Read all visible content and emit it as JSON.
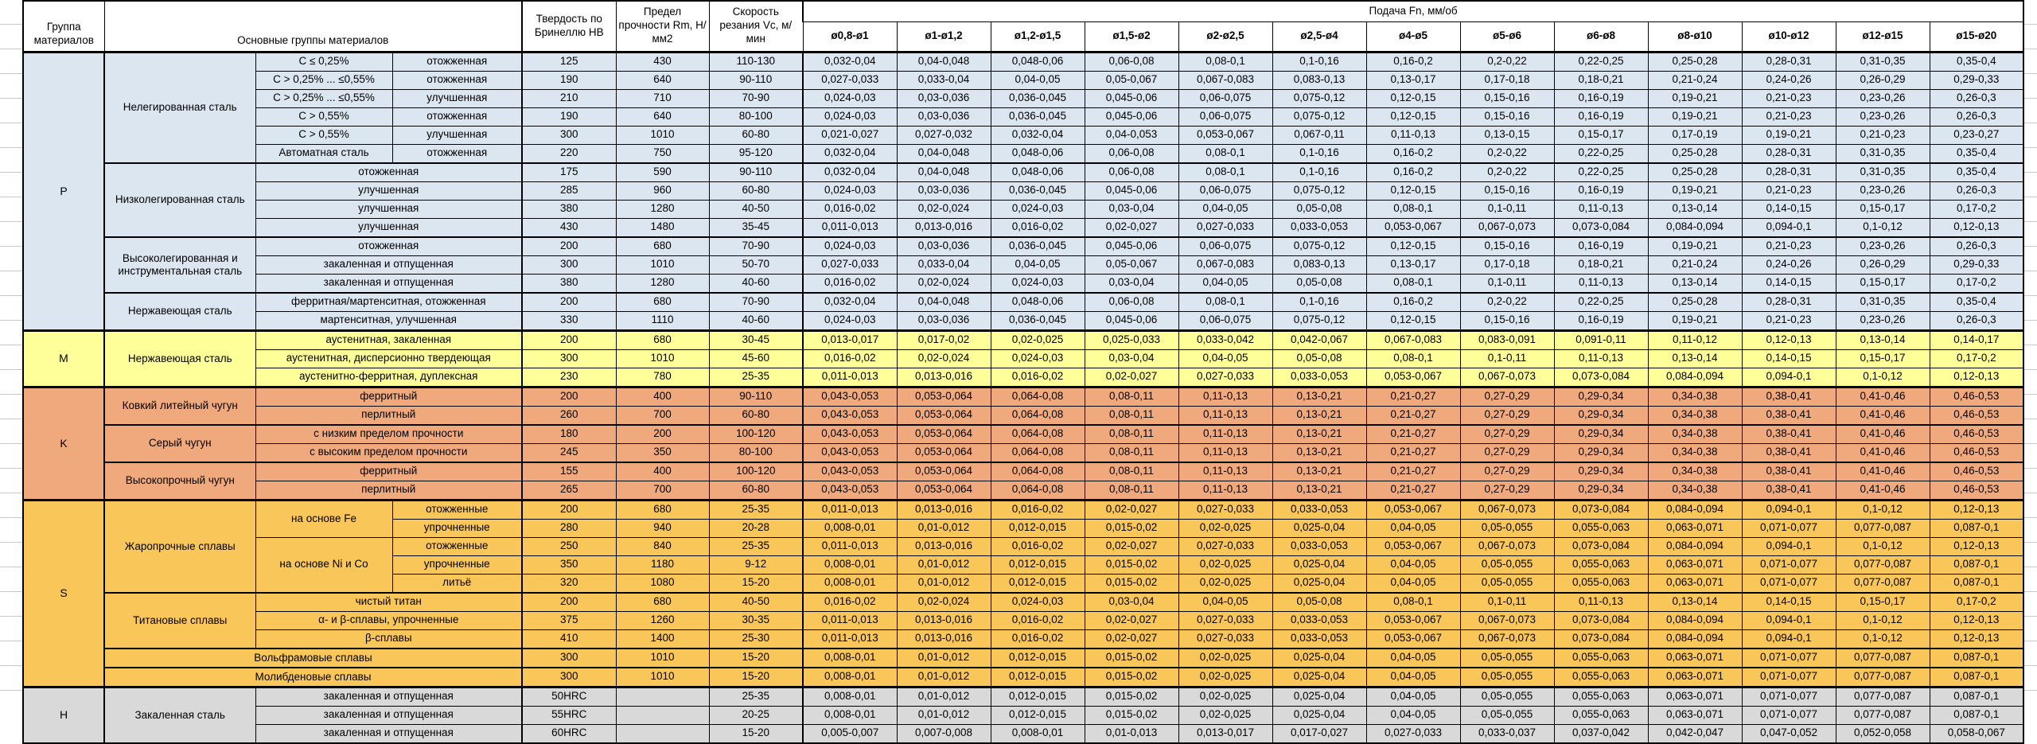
{
  "header": {
    "col_group": "Группа материалов",
    "col_materials": "Основные группы материалов",
    "col_hardness": "Твердость по Бринеллю HB",
    "col_strength": "Предел прочности Rm, Н/мм2",
    "col_speed": "Скорость резания Vc, м/мин",
    "feed_group": "Подача Fn, мм/об",
    "feed_columns": [
      "ø0,8-ø1",
      "ø1-ø1,2",
      "ø1,2-ø1,5",
      "ø1,5-ø2",
      "ø2-ø2,5",
      "ø2,5-ø4",
      "ø4-ø5",
      "ø5-ø6",
      "ø6-ø8",
      "ø8-ø10",
      "ø10-ø12",
      "ø12-ø15",
      "ø15-ø20"
    ]
  },
  "colors": {
    "p_blue": "#DCE6F1",
    "m_yellow": "#FFFF99",
    "k_salmon": "#F0A97C",
    "s_amber": "#F9C65A",
    "h_gray": "#D9D9D9",
    "border": "#000000",
    "gridline": "#C9C9C9"
  },
  "feed_presets": {
    "A": [
      "0,032-0,04",
      "0,04-0,048",
      "0,048-0,06",
      "0,06-0,08",
      "0,08-0,1",
      "0,1-0,16",
      "0,16-0,2",
      "0,2-0,22",
      "0,22-0,25",
      "0,25-0,28",
      "0,28-0,31",
      "0,31-0,35",
      "0,35-0,4"
    ],
    "B": [
      "0,027-0,033",
      "0,033-0,04",
      "0,04-0,05",
      "0,05-0,067",
      "0,067-0,083",
      "0,083-0,13",
      "0,13-0,17",
      "0,17-0,18",
      "0,18-0,21",
      "0,21-0,24",
      "0,24-0,26",
      "0,26-0,29",
      "0,29-0,33"
    ],
    "C": [
      "0,024-0,03",
      "0,03-0,036",
      "0,036-0,045",
      "0,045-0,06",
      "0,06-0,075",
      "0,075-0,12",
      "0,12-0,15",
      "0,15-0,16",
      "0,16-0,19",
      "0,19-0,21",
      "0,21-0,23",
      "0,23-0,26",
      "0,26-0,3"
    ],
    "D": [
      "0,021-0,027",
      "0,027-0,032",
      "0,032-0,04",
      "0,04-0,053",
      "0,053-0,067",
      "0,067-0,11",
      "0,11-0,13",
      "0,13-0,15",
      "0,15-0,17",
      "0,17-0,19",
      "0,19-0,21",
      "0,21-0,23",
      "0,23-0,27"
    ],
    "E": [
      "0,016-0,02",
      "0,02-0,024",
      "0,024-0,03",
      "0,03-0,04",
      "0,04-0,05",
      "0,05-0,08",
      "0,08-0,1",
      "0,1-0,11",
      "0,11-0,13",
      "0,13-0,14",
      "0,14-0,15",
      "0,15-0,17",
      "0,17-0,2"
    ],
    "F": [
      "0,011-0,013",
      "0,013-0,016",
      "0,016-0,02",
      "0,02-0,027",
      "0,027-0,033",
      "0,033-0,053",
      "0,053-0,067",
      "0,067-0,073",
      "0,073-0,084",
      "0,084-0,094",
      "0,094-0,1",
      "0,1-0,12",
      "0,12-0,13"
    ],
    "G": [
      "0,013-0,017",
      "0,017-0,02",
      "0,02-0,025",
      "0,025-0,033",
      "0,033-0,042",
      "0,042-0,067",
      "0,067-0,083",
      "0,083-0,091",
      "0,091-0,11",
      "0,11-0,12",
      "0,12-0,13",
      "0,13-0,14",
      "0,14-0,17"
    ],
    "K": [
      "0,043-0,053",
      "0,053-0,064",
      "0,064-0,08",
      "0,08-0,11",
      "0,11-0,13",
      "0,13-0,21",
      "0,21-0,27",
      "0,27-0,29",
      "0,29-0,34",
      "0,34-0,38",
      "0,38-0,41",
      "0,41-0,46",
      "0,46-0,53"
    ],
    "S": [
      "0,008-0,01",
      "0,01-0,012",
      "0,012-0,015",
      "0,015-0,02",
      "0,02-0,025",
      "0,025-0,04",
      "0,04-0,05",
      "0,05-0,055",
      "0,055-0,063",
      "0,063-0,071",
      "0,071-0,077",
      "0,077-0,087",
      "0,087-0,1"
    ],
    "H": [
      "0,005-0,007",
      "0,007-0,008",
      "0,008-0,01",
      "0,01-0,013",
      "0,013-0,017",
      "0,017-0,027",
      "0,027-0,033",
      "0,033-0,037",
      "0,037-0,042",
      "0,042-0,047",
      "0,047-0,052",
      "0,052-0,058",
      "0,058-0,067"
    ]
  },
  "groups": [
    {
      "code": "P",
      "color": "#DCE6F1",
      "blocks": [
        {
          "name": "Нелегированная сталь",
          "rows": [
            {
              "sub": "C ≤ 0,25%",
              "state": "отожженная",
              "hb": "125",
              "rm": "430",
              "vc": "110-130",
              "feeds": "A"
            },
            {
              "sub": "C > 0,25% ... ≤0,55%",
              "state": "отожженная",
              "hb": "190",
              "rm": "640",
              "vc": "90-110",
              "feeds": "B"
            },
            {
              "sub": "C > 0,25% ... ≤0,55%",
              "state": "улучшенная",
              "hb": "210",
              "rm": "710",
              "vc": "70-90",
              "feeds": "C"
            },
            {
              "sub": "C > 0,55%",
              "state": "отожженная",
              "hb": "190",
              "rm": "640",
              "vc": "80-100",
              "feeds": "C"
            },
            {
              "sub": "C > 0,55%",
              "state": "улучшенная",
              "hb": "300",
              "rm": "1010",
              "vc": "60-80",
              "feeds": "D"
            },
            {
              "sub": "Автоматная сталь",
              "state": "отожженная",
              "hb": "220",
              "rm": "750",
              "vc": "95-120",
              "feeds": "A"
            }
          ]
        },
        {
          "name": "Низколегированная сталь",
          "rows": [
            {
              "state_wide": "отожженная",
              "hb": "175",
              "rm": "590",
              "vc": "90-110",
              "feeds": "A"
            },
            {
              "state_wide": "улучшенная",
              "hb": "285",
              "rm": "960",
              "vc": "60-80",
              "feeds": "C"
            },
            {
              "state_wide": "улучшенная",
              "hb": "380",
              "rm": "1280",
              "vc": "40-50",
              "feeds": "E"
            },
            {
              "state_wide": "улучшенная",
              "hb": "430",
              "rm": "1480",
              "vc": "35-45",
              "feeds": "F"
            }
          ]
        },
        {
          "name": "Высоколегированная и инструментальная сталь",
          "rows": [
            {
              "state_wide": "отожженная",
              "hb": "200",
              "rm": "680",
              "vc": "70-90",
              "feeds": "C"
            },
            {
              "state_wide": "закаленная и отпущенная",
              "hb": "300",
              "rm": "1010",
              "vc": "50-70",
              "feeds": "B"
            },
            {
              "state_wide": "закаленная и отпущенная",
              "hb": "380",
              "rm": "1280",
              "vc": "40-60",
              "feeds": "E"
            }
          ]
        },
        {
          "name": "Нержавеющая сталь",
          "rows": [
            {
              "state_wide": "ферритная/мартенситная, отожженная",
              "hb": "200",
              "rm": "680",
              "vc": "70-90",
              "feeds": "A"
            },
            {
              "state_wide": "мартенситная, улучшенная",
              "hb": "330",
              "rm": "1110",
              "vc": "40-60",
              "feeds": "C"
            }
          ]
        }
      ]
    },
    {
      "code": "M",
      "color": "#FFFF99",
      "blocks": [
        {
          "name": "Нержавеющая сталь",
          "rows": [
            {
              "state_wide": "аустенитная, закаленная",
              "hb": "200",
              "rm": "680",
              "vc": "30-45",
              "feeds": "G"
            },
            {
              "state_wide": "аустенитная, дисперсионно твердеющая",
              "hb": "300",
              "rm": "1010",
              "vc": "45-60",
              "feeds": "E"
            },
            {
              "state_wide": "аустенитно-ферритная, дуплексная",
              "hb": "230",
              "rm": "780",
              "vc": "25-35",
              "feeds": "F"
            }
          ]
        }
      ]
    },
    {
      "code": "K",
      "color": "#F0A97C",
      "blocks": [
        {
          "name": "Ковкий литейный чугун",
          "rows": [
            {
              "state_wide": "ферритный",
              "hb": "200",
              "rm": "400",
              "vc": "90-110",
              "feeds": "K"
            },
            {
              "state_wide": "перлитный",
              "hb": "260",
              "rm": "700",
              "vc": "60-80",
              "feeds": "K"
            }
          ]
        },
        {
          "name": "Серый чугун",
          "rows": [
            {
              "state_wide": "с низким пределом прочности",
              "hb": "180",
              "rm": "200",
              "vc": "100-120",
              "feeds": "K"
            },
            {
              "state_wide": "с высоким пределом прочности",
              "hb": "245",
              "rm": "350",
              "vc": "80-100",
              "feeds": "K"
            }
          ]
        },
        {
          "name": "Высокопрочный чугун",
          "rows": [
            {
              "state_wide": "ферритный",
              "hb": "155",
              "rm": "400",
              "vc": "100-120",
              "feeds": "K"
            },
            {
              "state_wide": "перлитный",
              "hb": "265",
              "rm": "700",
              "vc": "60-80",
              "feeds": "K"
            }
          ]
        }
      ]
    },
    {
      "code": "S",
      "color": "#F9C65A",
      "blocks": [
        {
          "name": "Жаропрочные сплавы",
          "subblocks": [
            {
              "name": "на основе Fe",
              "rows": [
                {
                  "state": "отожженные",
                  "hb": "200",
                  "rm": "680",
                  "vc": "25-35",
                  "feeds": "F"
                },
                {
                  "state": "упрочненные",
                  "hb": "280",
                  "rm": "940",
                  "vc": "20-28",
                  "feeds": "S"
                }
              ]
            },
            {
              "name": "на основе Ni и Co",
              "rows": [
                {
                  "state": "отожженные",
                  "hb": "250",
                  "rm": "840",
                  "vc": "25-35",
                  "feeds": "F"
                },
                {
                  "state": "упрочненные",
                  "hb": "350",
                  "rm": "1180",
                  "vc": "9-12",
                  "feeds": "S"
                },
                {
                  "state": "литьё",
                  "hb": "320",
                  "rm": "1080",
                  "vc": "15-20",
                  "feeds": "S"
                }
              ]
            }
          ]
        },
        {
          "name": "Титановые сплавы",
          "rows": [
            {
              "state_wide": "чистый титан",
              "hb": "200",
              "rm": "680",
              "vc": "40-50",
              "feeds": "E"
            },
            {
              "state_wide": "α- и β-сплавы, упрочненные",
              "hb": "375",
              "rm": "1260",
              "vc": "30-35",
              "feeds": "F"
            },
            {
              "state_wide": "β-сплавы",
              "hb": "410",
              "rm": "1400",
              "vc": "25-30",
              "feeds": "F"
            }
          ]
        },
        {
          "name_wide": "Вольфрамовые сплавы",
          "rows": [
            {
              "hb": "300",
              "rm": "1010",
              "vc": "15-20",
              "feeds": "S"
            }
          ]
        },
        {
          "name_wide": "Молибденовые сплавы",
          "rows": [
            {
              "hb": "300",
              "rm": "1010",
              "vc": "15-20",
              "feeds": "S"
            }
          ]
        }
      ]
    },
    {
      "code": "H",
      "color": "#D9D9D9",
      "blocks": [
        {
          "name": "Закаленная сталь",
          "rows": [
            {
              "state_wide": "закаленная и отпущенная",
              "hb": "50HRC",
              "rm": "",
              "vc": "25-35",
              "feeds": "S"
            },
            {
              "state_wide": "закаленная и отпущенная",
              "hb": "55HRC",
              "rm": "",
              "vc": "20-25",
              "feeds": "S"
            },
            {
              "state_wide": "закаленная и отпущенная",
              "hb": "60HRC",
              "rm": "",
              "vc": "15-20",
              "feeds": "H"
            }
          ]
        }
      ]
    }
  ]
}
